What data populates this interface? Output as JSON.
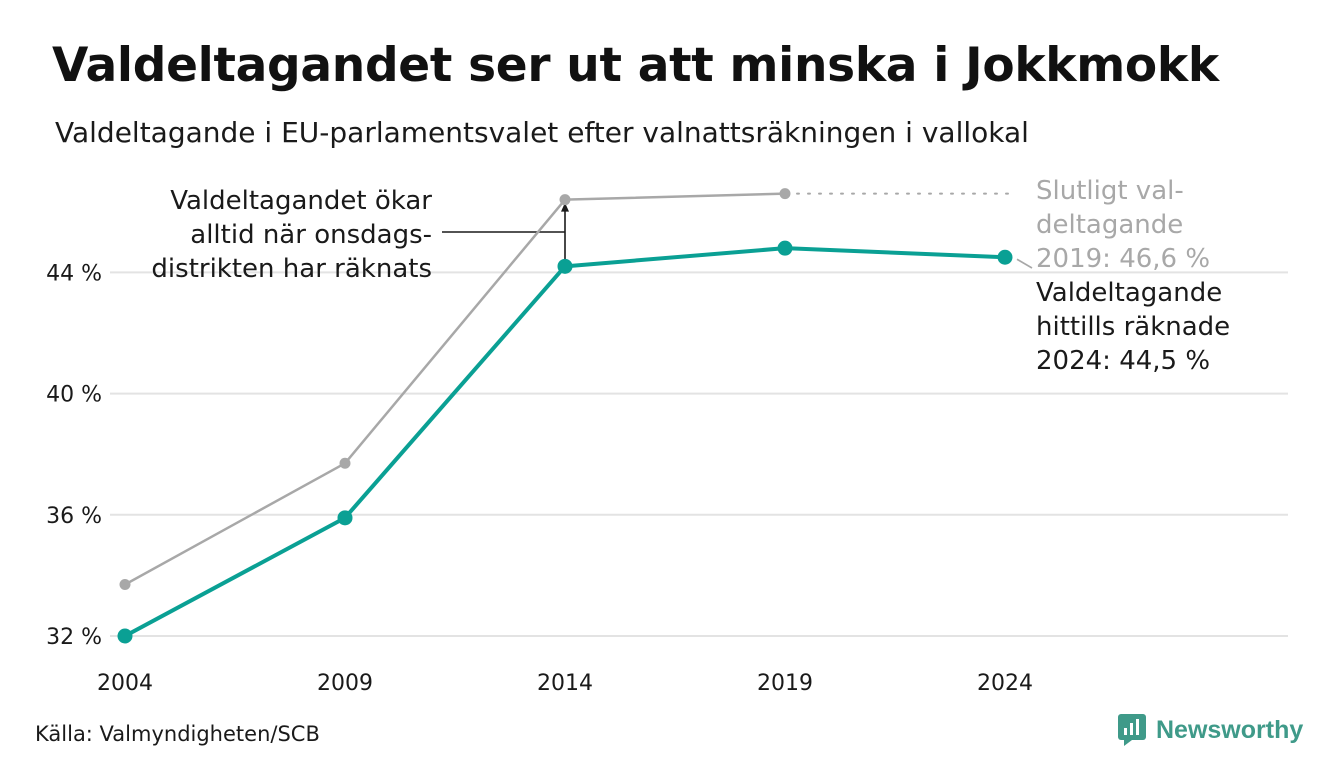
{
  "title": "Valdeltagandet ser ut att minska i Jokkmokk",
  "subtitle": "Valdeltagande i EU-parlamentsvalet efter valnattsräkningen i vallokal",
  "source": "Källa: Valmyndigheten/SCB",
  "brand": "Newsworthy",
  "colors": {
    "final": "#a8a8a8",
    "counted": "#0aa094",
    "grid": "#e3e3e3",
    "brand": "#3f9a89"
  },
  "chart_data": {
    "type": "line",
    "x": [
      "2004",
      "2009",
      "2014",
      "2019",
      "2024"
    ],
    "ylim": [
      32,
      46.6
    ],
    "yticks": [
      32,
      36,
      40,
      44
    ],
    "ytick_labels": [
      "32 %",
      "36 %",
      "40 %",
      "44 %"
    ],
    "grid": true,
    "series": [
      {
        "key": "final",
        "values": [
          33.7,
          37.7,
          46.4,
          46.6,
          null
        ]
      },
      {
        "key": "counted",
        "values": [
          32.0,
          35.9,
          44.2,
          44.8,
          44.5
        ]
      }
    ],
    "annotations": {
      "wednesday": [
        "Valdeltagandet ökar",
        "alltid när onsdags-",
        "distrikten har räknats"
      ],
      "final": [
        "Slutligt val-",
        "deltagande",
        "2019: 46,6 %"
      ],
      "counted": [
        "Valdeltagande",
        "hittills räknade",
        "2024: 44,5 %"
      ]
    }
  }
}
